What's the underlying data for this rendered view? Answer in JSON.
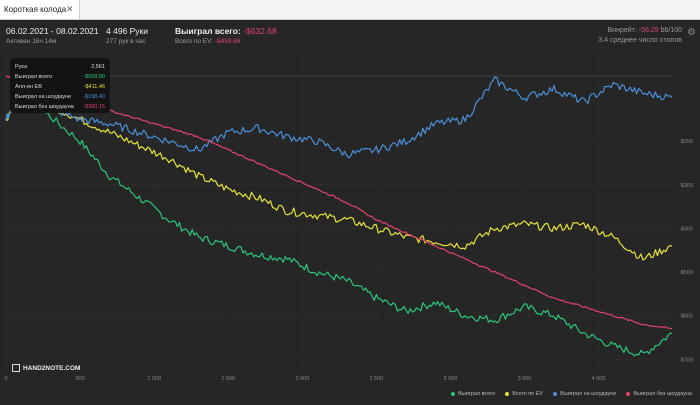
{
  "tab": {
    "label": "Короткая колода"
  },
  "header": {
    "date_range": "06.02.2021 - 08.02.2021",
    "active": "Активен 16ч 14м",
    "hands": "4 496 Руки",
    "hands_per_hour": "277 рук в час",
    "won_label": "Выиграл всего:",
    "won_value": "-$632.68",
    "ev_label": "Всего по EV:",
    "ev_value": "-$459.68",
    "winrate_label": "Винрейт:",
    "winrate_value": "-56.29",
    "winrate_unit": "bb/100",
    "tables": "3.4 среднее число столов"
  },
  "tooltip": {
    "rows": [
      {
        "label": "Рука",
        "value": "2,561",
        "color": "#dddddd"
      },
      {
        "label": "Выиграл всего",
        "value": "-$558.80",
        "color": "#2cc57a"
      },
      {
        "label": "Алл-ин EB",
        "value": "-$411.46",
        "color": "#e6e23a"
      },
      {
        "label": "Выиграл на шоудауне",
        "value": "-$198.40",
        "color": "#4a90d9"
      },
      {
        "label": "Выиграл без шоудауна",
        "value": "-$360.15",
        "color": "#e0446a"
      }
    ]
  },
  "logo": {
    "text": "HAND2NOTE.COM"
  },
  "chart_data": {
    "type": "line",
    "x_ticks": [
      "0",
      "500",
      "1 000",
      "1 500",
      "2 000",
      "2 500",
      "3 000",
      "3 500",
      "4 000"
    ],
    "y_ticks": [
      "-$200",
      "-$300",
      "-$400",
      "-$500",
      "-$600",
      "-$700"
    ],
    "xlim": [
      0,
      4496
    ],
    "ylim": [
      -720,
      0
    ],
    "grid": true,
    "legend_position": "bottom-right",
    "series": [
      {
        "name": "Выиграл всего",
        "color": "#2cc57a",
        "x": [
          0,
          100,
          250,
          500,
          700,
          900,
          1100,
          1300,
          1500,
          1700,
          1900,
          2100,
          2300,
          2500,
          2700,
          2900,
          3100,
          3300,
          3500,
          3700,
          3900,
          4100,
          4300,
          4496
        ],
        "values": [
          -150,
          -80,
          -130,
          -200,
          -280,
          -330,
          -380,
          -420,
          -440,
          -460,
          -470,
          -500,
          -520,
          -560,
          -590,
          -570,
          -600,
          -610,
          -580,
          -600,
          -640,
          -670,
          -690,
          -640
        ]
      },
      {
        "name": "Всего по EV",
        "color": "#e6e23a",
        "x": [
          0,
          100,
          250,
          500,
          700,
          900,
          1100,
          1300,
          1500,
          1700,
          1900,
          2100,
          2300,
          2500,
          2700,
          2900,
          3100,
          3300,
          3500,
          3700,
          3900,
          4100,
          4300,
          4496
        ],
        "values": [
          -150,
          -80,
          -110,
          -150,
          -180,
          -210,
          -240,
          -280,
          -310,
          -330,
          -360,
          -370,
          -380,
          -400,
          -420,
          -430,
          -440,
          -400,
          -390,
          -400,
          -390,
          -420,
          -470,
          -440
        ]
      },
      {
        "name": "Выиграл на шоудауне",
        "color": "#4a90d9",
        "x": [
          0,
          100,
          250,
          500,
          700,
          900,
          1100,
          1300,
          1500,
          1700,
          1900,
          2100,
          2300,
          2500,
          2700,
          2900,
          3100,
          3300,
          3500,
          3700,
          3900,
          4100,
          4300,
          4496
        ],
        "values": [
          -150,
          -80,
          -120,
          -150,
          -160,
          -180,
          -200,
          -220,
          -180,
          -170,
          -190,
          -200,
          -230,
          -220,
          -200,
          -160,
          -150,
          -60,
          -100,
          -80,
          -110,
          -70,
          -90,
          -100
        ]
      },
      {
        "name": "Выиграл без шоудауна",
        "color": "#e0446a",
        "x": [
          0,
          100,
          250,
          500,
          700,
          900,
          1100,
          1300,
          1500,
          1700,
          1900,
          2100,
          2300,
          2500,
          2700,
          2900,
          3100,
          3300,
          3500,
          3700,
          3900,
          4100,
          4300,
          4496
        ],
        "values": [
          -50,
          -60,
          -80,
          -110,
          -130,
          -150,
          -170,
          -190,
          -220,
          -250,
          -280,
          -310,
          -340,
          -380,
          -410,
          -440,
          -470,
          -500,
          -530,
          -560,
          -580,
          -600,
          -620,
          -630
        ]
      }
    ]
  }
}
